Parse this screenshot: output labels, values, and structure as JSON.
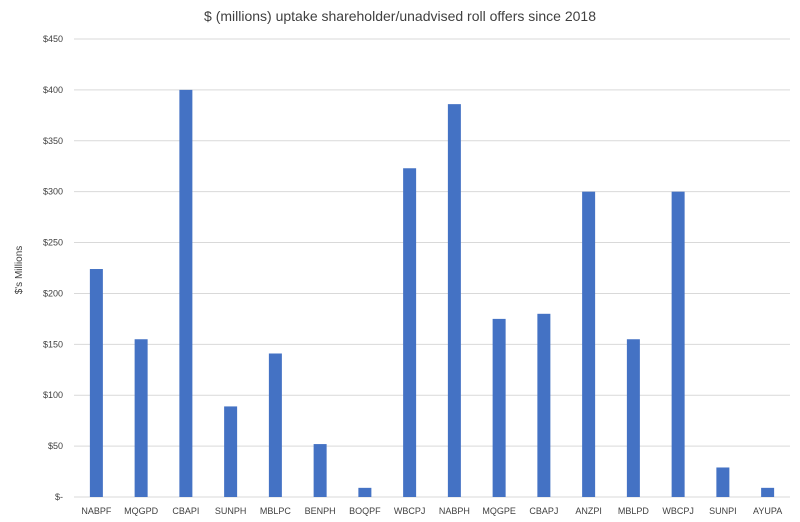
{
  "chart_data": {
    "type": "bar",
    "title": "$ (millions) uptake shareholder/unadvised roll offers since 2018",
    "xlabel": "",
    "ylabel": "$'s Millions",
    "ylim": [
      0,
      450
    ],
    "yticks": [
      {
        "value": 0,
        "label": "$-"
      },
      {
        "value": 50,
        "label": "$50"
      },
      {
        "value": 100,
        "label": "$100"
      },
      {
        "value": 150,
        "label": "$150"
      },
      {
        "value": 200,
        "label": "$200"
      },
      {
        "value": 250,
        "label": "$250"
      },
      {
        "value": 300,
        "label": "$300"
      },
      {
        "value": 350,
        "label": "$350"
      },
      {
        "value": 400,
        "label": "$400"
      },
      {
        "value": 450,
        "label": "$450"
      }
    ],
    "categories": [
      "NABPF",
      "MQGPD",
      "CBAPI",
      "SUNPH",
      "MBLPC",
      "BENPH",
      "BOQPF",
      "WBCPJ",
      "NABPH",
      "MQGPE",
      "CBAPJ",
      "ANZPI",
      "MBLPD",
      "WBCPJ",
      "SUNPI",
      "AYUPA"
    ],
    "values": [
      224,
      155,
      400,
      89,
      141,
      52,
      9,
      323,
      386,
      175,
      180,
      300,
      155,
      300,
      29,
      9
    ],
    "bar_color": "#4472C4",
    "grid_color": "#d9d9d9",
    "grid": true,
    "legend": "none"
  }
}
